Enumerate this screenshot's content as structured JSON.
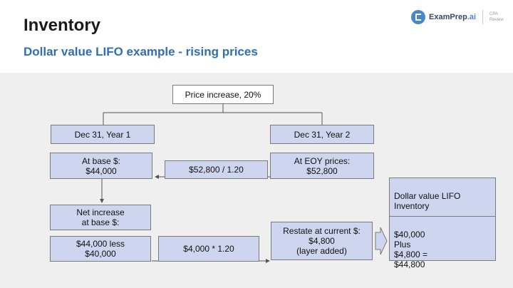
{
  "header": {
    "title": "Inventory",
    "subtitle": "Dollar value LIFO example - rising prices",
    "logo_name": "ExamPrep",
    "logo_suffix": ".ai",
    "logo_sub": "CPA\nReview"
  },
  "diagram": {
    "price_increase": "Price increase, 20%",
    "year1": "Dec 31, Year 1",
    "year2": "Dec 31, Year 2",
    "at_base": "At base $:\n$44,000",
    "eoy_prices": "At EOY prices:\n$52,800",
    "divide": "$52,800 / 1.20",
    "net_increase": "Net increase\nat base $:",
    "less": "$44,000 less\n$40,000",
    "multiply": "$4,000 * 1.20",
    "restate": "Restate at current $:\n$4,800\n(layer added)",
    "result_title": "Dollar value LIFO\nInventory",
    "result_body": "$40,000\nPlus\n$4,800 =\n$44,800"
  },
  "colors": {
    "box_fill": "#cdd6ee",
    "subtitle": "#2f6fb3",
    "panel": "#efefef"
  }
}
